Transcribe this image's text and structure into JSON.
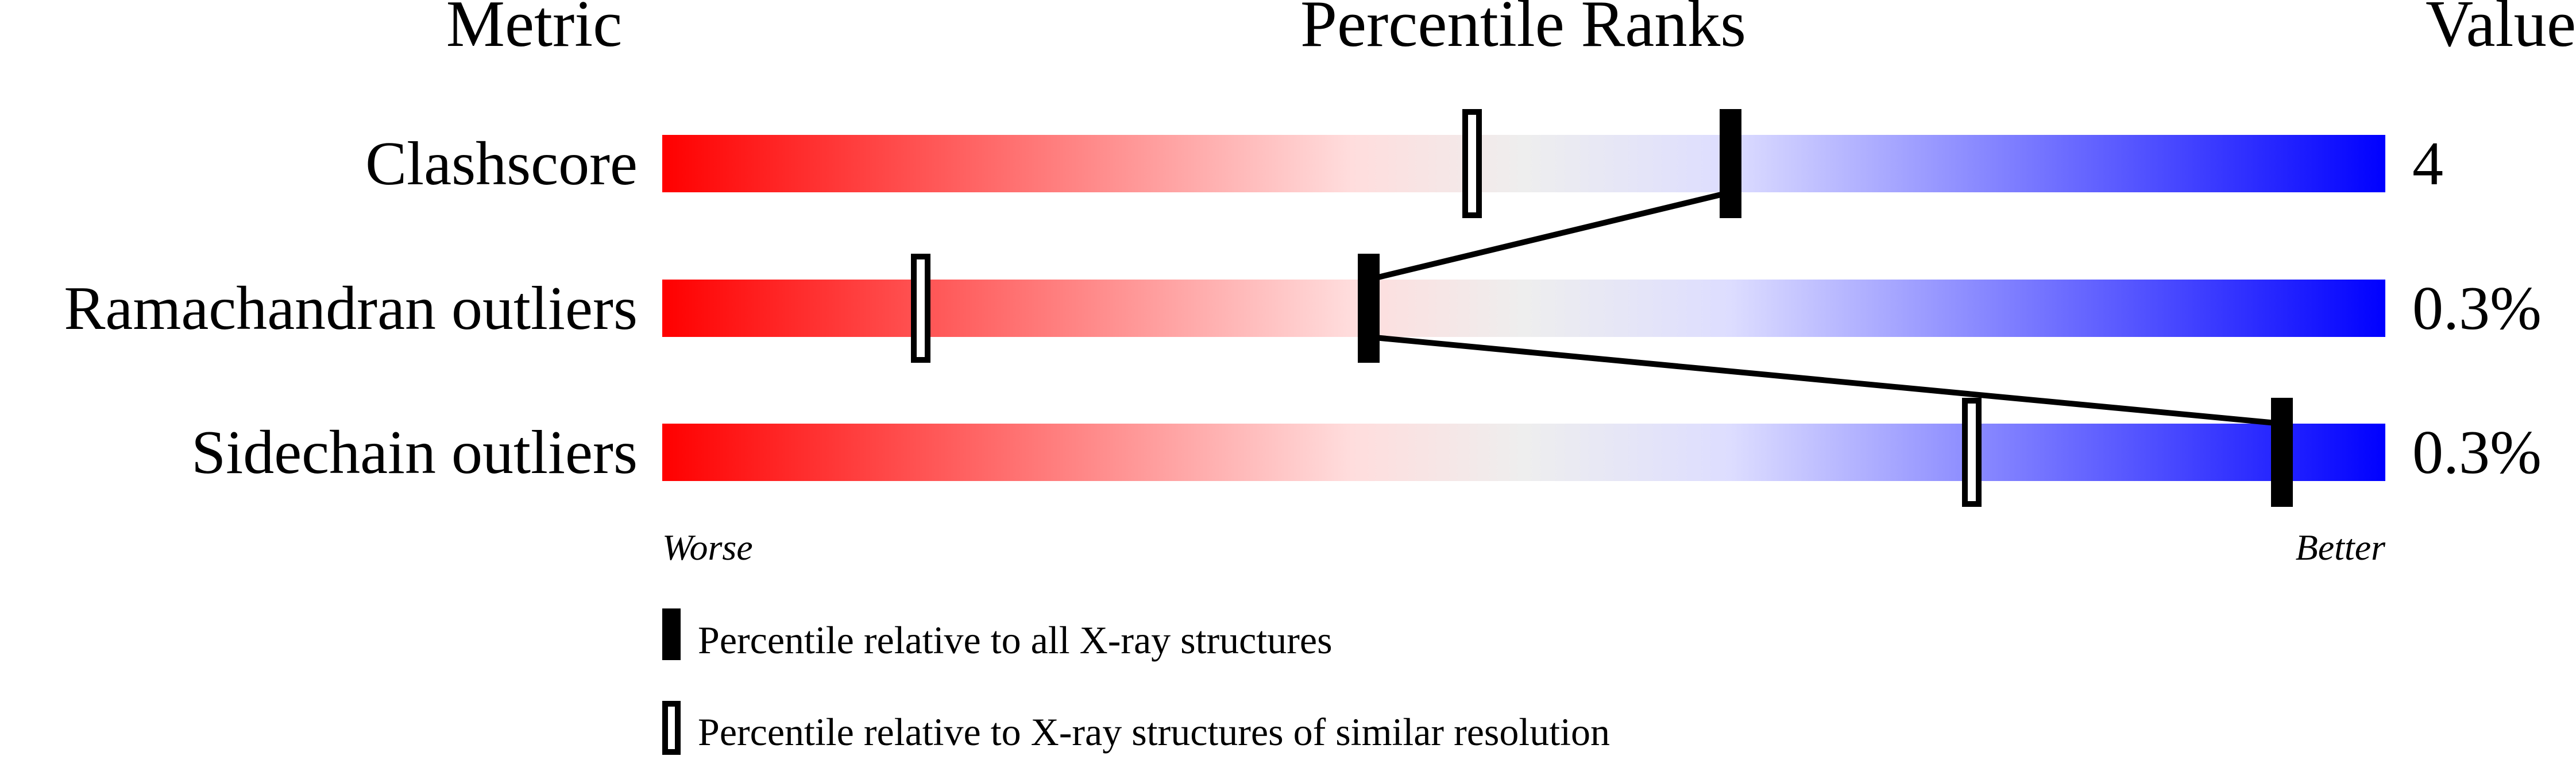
{
  "chart_data": {
    "type": "percentile-bar",
    "headers": {
      "metric": "Metric",
      "ranks": "Percentile Ranks",
      "value": "Value"
    },
    "xlim": [
      0,
      100
    ],
    "rows": [
      {
        "metric": "Clashscore",
        "value": "4",
        "percentile_all": 62,
        "percentile_similar": 47
      },
      {
        "metric": "Ramachandran outliers",
        "value": "0.3%",
        "percentile_all": 41,
        "percentile_similar": 15
      },
      {
        "metric": "Sidechain outliers",
        "value": "0.3%",
        "percentile_all": 94,
        "percentile_similar": 76
      }
    ],
    "axis_labels": {
      "left": "Worse",
      "right": "Better"
    },
    "legend": {
      "all": "Percentile relative to all X-ray structures",
      "similar": "Percentile relative to X-ray structures of similar resolution"
    },
    "colors": {
      "worse": "#ff0000",
      "mid_red": "#ffdddd",
      "neutral": "#eeeeee",
      "mid_blue": "#ddddff",
      "better": "#0000ff",
      "marker": "#000000"
    }
  }
}
